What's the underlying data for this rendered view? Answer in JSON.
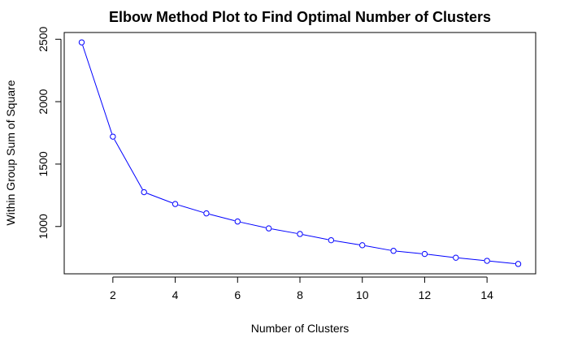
{
  "chart_data": {
    "type": "line",
    "title": "Elbow Method Plot to Find Optimal Number of Clusters",
    "xlabel": "Number of Clusters",
    "ylabel": "Within Group Sum of Square",
    "x": [
      1,
      2,
      3,
      4,
      5,
      6,
      7,
      8,
      9,
      10,
      11,
      12,
      13,
      14,
      15
    ],
    "series": [
      {
        "values": [
          2475,
          1720,
          1275,
          1180,
          1105,
          1040,
          985,
          940,
          890,
          850,
          805,
          780,
          750,
          725,
          700
        ],
        "color": "#0000ff"
      }
    ],
    "xlim": [
      0.44,
      15.56
    ],
    "ylim": [
      621,
      2554
    ],
    "xticks": [
      2,
      4,
      6,
      8,
      10,
      12,
      14
    ],
    "yticks": [
      1000,
      1500,
      2000,
      2500
    ],
    "grid": false,
    "marker": "open-circle"
  }
}
